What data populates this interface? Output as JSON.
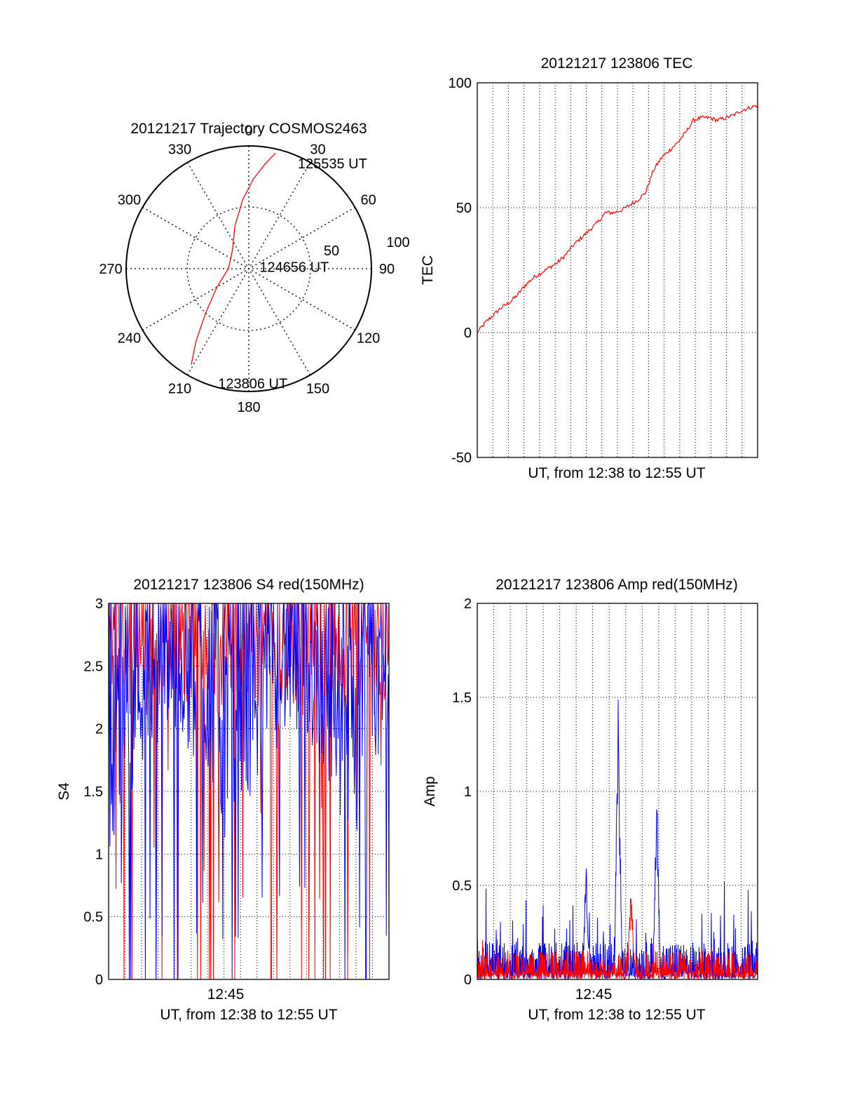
{
  "chart_data": [
    {
      "type": "polar",
      "title": "20121217 Trajectory COSMOS2463",
      "angle_ticks": [
        "0",
        "30",
        "60",
        "90",
        "120",
        "150",
        "180",
        "210",
        "240",
        "270",
        "300",
        "330"
      ],
      "radius_ticks": [
        "50",
        "100"
      ],
      "series": [
        {
          "color": "#ff0000",
          "points": [
            {
              "az": 211,
              "zen": 82
            },
            {
              "az": 216,
              "zen": 66
            },
            {
              "az": 224,
              "zen": 46
            },
            {
              "az": 240,
              "zen": 27
            },
            {
              "az": 270,
              "zen": 15
            },
            {
              "az": 318,
              "zen": 18
            },
            {
              "az": 342,
              "zen": 33
            },
            {
              "az": 355,
              "zen": 51
            },
            {
              "az": 3,
              "zen": 66
            },
            {
              "az": 9,
              "zen": 78
            },
            {
              "az": 13,
              "zen": 87
            }
          ]
        }
      ],
      "annotations": [
        {
          "text": "125535 UT",
          "az": 25,
          "zen": 85
        },
        {
          "text": "124656 UT",
          "az": 80,
          "zen": 8
        },
        {
          "text": "123806 UT",
          "az": 195,
          "zen": 87
        }
      ]
    },
    {
      "type": "line",
      "title": "20121217 123806 TEC",
      "xlabel": "UT, from 12:38 to 12:55 UT",
      "ylabel": "TEC",
      "xlim": [
        0,
        17.5
      ],
      "ylim": [
        -50,
        100
      ],
      "yticks": [
        "-50",
        "0",
        "50",
        "100"
      ],
      "grid": true,
      "series": [
        {
          "color": "#ff0000",
          "x": [
            0,
            0.5,
            1,
            1.5,
            2,
            2.5,
            3,
            3.5,
            4,
            4.5,
            5,
            5.5,
            6,
            6.5,
            7,
            7.5,
            8,
            8.5,
            9,
            9.5,
            10,
            10.5,
            11,
            11.5,
            12,
            12.5,
            13,
            13.5,
            14,
            14.5,
            15,
            15.5,
            16,
            16.5,
            17,
            17.5
          ],
          "y": [
            0,
            4,
            7,
            10,
            12,
            15,
            19,
            22,
            24,
            26,
            28,
            31,
            35,
            38,
            41,
            44,
            48,
            48,
            49,
            51,
            53,
            56,
            65,
            70,
            73,
            76,
            80,
            85,
            86,
            86,
            85,
            86,
            87,
            89,
            90,
            91
          ]
        }
      ]
    },
    {
      "type": "line",
      "title": "20121217 123806 S4 red(150MHz)",
      "xlabel": "UT, from 12:38 to 12:55 UT",
      "ylabel": "S4",
      "xlim": [
        0,
        17.5
      ],
      "ylim": [
        0,
        3
      ],
      "xticks": [
        "12:45"
      ],
      "yticks": [
        "0",
        "0.5",
        "1",
        "1.5",
        "2",
        "2.5",
        "3"
      ],
      "grid": true,
      "series": [
        {
          "color": "#ff0000",
          "noisy_band": [
            2.1,
            3.0
          ],
          "spikes_to_zero": true
        },
        {
          "color": "#0000ff",
          "noisy_band": [
            1.0,
            3.0
          ],
          "min_dips": [
            0.3,
            0.4,
            0.6
          ]
        }
      ]
    },
    {
      "type": "line",
      "title": "20121217 123806 Amp red(150MHz)",
      "xlabel": "UT, from 12:38 to 12:55 UT",
      "ylabel": "Amp",
      "xlim": [
        0,
        17.5
      ],
      "ylim": [
        0,
        2
      ],
      "xticks": [
        "12:45"
      ],
      "yticks": [
        "0",
        "0.5",
        "1",
        "1.5",
        "2"
      ],
      "grid": true,
      "series": [
        {
          "color": "#ff0000",
          "baseline": 0.15,
          "peaks": [
            {
              "x": 9.6,
              "y": 0.52
            }
          ]
        },
        {
          "color": "#0000ff",
          "baseline": 0.2,
          "peaks": [
            {
              "x": 8.8,
              "y": 1.57
            },
            {
              "x": 11.2,
              "y": 1.08
            },
            {
              "x": 6.8,
              "y": 0.64
            }
          ]
        }
      ]
    }
  ]
}
